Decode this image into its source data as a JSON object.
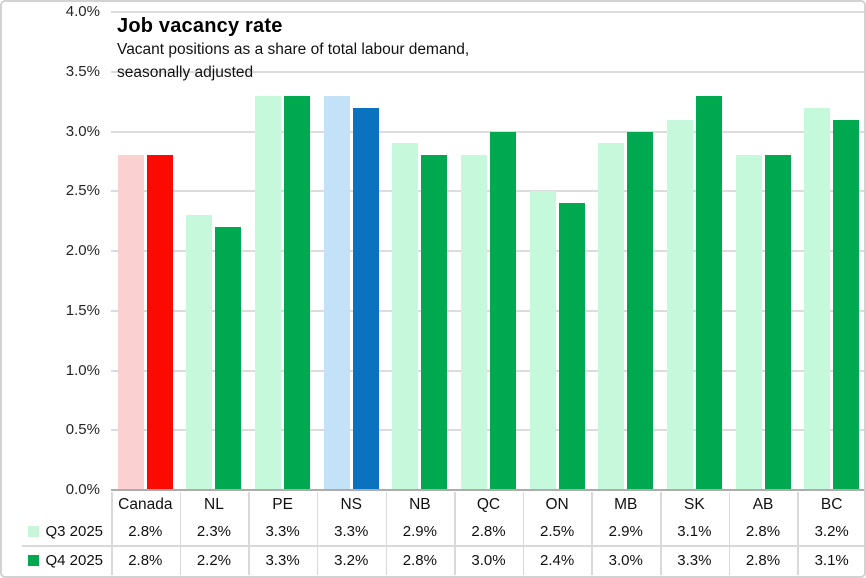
{
  "chart": {
    "title": "Job vacancy rate",
    "subtitle_lines": [
      "Vacant positions as a share of total labour demand,",
      "seasonally adjusted"
    ]
  },
  "chart_data": {
    "type": "bar",
    "title": "Job vacancy rate",
    "subtitle": "Vacant positions as a share of total labour demand, seasonally adjusted",
    "categories": [
      "Canada",
      "NL",
      "PE",
      "NS",
      "NB",
      "QC",
      "ON",
      "MB",
      "SK",
      "AB",
      "BC"
    ],
    "series": [
      {
        "name": "Q3 2025",
        "values": [
          2.8,
          2.3,
          3.3,
          3.3,
          2.9,
          2.8,
          2.5,
          2.9,
          3.1,
          2.8,
          3.2
        ],
        "labels": [
          "2.8%",
          "2.3%",
          "3.3%",
          "3.3%",
          "2.9%",
          "2.8%",
          "2.5%",
          "2.9%",
          "3.1%",
          "2.8%",
          "3.2%"
        ],
        "swatch_color": "#C9F5DA"
      },
      {
        "name": "Q4 2025",
        "values": [
          2.8,
          2.2,
          3.3,
          3.2,
          2.8,
          3.0,
          2.4,
          3.0,
          3.3,
          2.8,
          3.1
        ],
        "labels": [
          "2.8%",
          "2.2%",
          "3.3%",
          "3.2%",
          "2.8%",
          "3.0%",
          "2.4%",
          "3.0%",
          "3.3%",
          "2.8%",
          "3.1%"
        ],
        "swatch_color": "#00A94F"
      }
    ],
    "ylim": [
      0,
      4
    ],
    "ytick_step": 0.5,
    "ytick_labels": [
      "0.0%",
      "0.5%",
      "1.0%",
      "1.5%",
      "2.0%",
      "2.5%",
      "3.0%",
      "3.5%",
      "4.0%"
    ],
    "grid": true,
    "legend_position": "data-table-row-headers",
    "bar_colors": {
      "default": [
        "#C6F9DC",
        "#00A94F"
      ],
      "Canada": [
        "#FBD0D0",
        "#FA0A00"
      ],
      "NS": [
        "#C4E2F7",
        "#0B72C0"
      ]
    }
  },
  "colors": {
    "gridline": "#DCDCDC",
    "axis_line": "#ACACAC",
    "table_line": "#D9D9D9",
    "frame_border": "#D2D2D2",
    "background": "#FFFFFF"
  }
}
